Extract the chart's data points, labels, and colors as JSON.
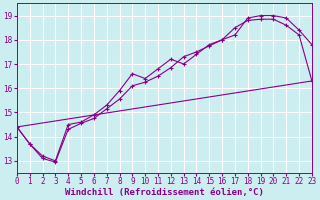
{
  "xlabel": "Windchill (Refroidissement éolien,°C)",
  "xlim": [
    0,
    23
  ],
  "ylim": [
    12.5,
    19.5
  ],
  "xticks": [
    0,
    1,
    2,
    3,
    4,
    5,
    6,
    7,
    8,
    9,
    10,
    11,
    12,
    13,
    14,
    15,
    16,
    17,
    18,
    19,
    20,
    21,
    22,
    23
  ],
  "yticks": [
    13,
    14,
    15,
    16,
    17,
    18,
    19
  ],
  "background_color": "#cceef0",
  "grid_color": "#ffffff",
  "line_color": "#880088",
  "curve1_x": [
    0,
    1,
    2,
    3,
    4,
    5,
    6,
    7,
    8,
    9,
    10,
    11,
    12,
    13,
    14,
    15,
    16,
    17,
    18,
    19,
    20,
    21,
    22,
    23
  ],
  "curve1_y": [
    14.4,
    13.7,
    13.2,
    13.0,
    14.5,
    14.6,
    14.9,
    15.3,
    15.9,
    16.6,
    16.4,
    16.8,
    17.2,
    17.0,
    17.4,
    17.8,
    18.0,
    18.2,
    18.9,
    19.0,
    19.0,
    18.9,
    18.4,
    17.8
  ],
  "curve2_x": [
    0,
    1,
    2,
    3,
    4,
    5,
    6,
    7,
    8,
    9,
    10,
    11,
    12,
    13,
    14,
    15,
    16,
    17,
    18,
    19,
    20,
    21,
    22,
    23
  ],
  "curve2_y": [
    14.4,
    13.7,
    13.1,
    12.95,
    14.3,
    14.55,
    14.75,
    15.15,
    15.55,
    16.1,
    16.25,
    16.5,
    16.85,
    17.3,
    17.5,
    17.75,
    18.0,
    18.5,
    18.8,
    18.85,
    18.85,
    18.6,
    18.2,
    16.3
  ],
  "curve3_x": [
    0,
    23
  ],
  "curve3_y": [
    14.4,
    16.3
  ],
  "font_family": "monospace",
  "tick_fontsize": 5.5,
  "xlabel_fontsize": 6.5
}
